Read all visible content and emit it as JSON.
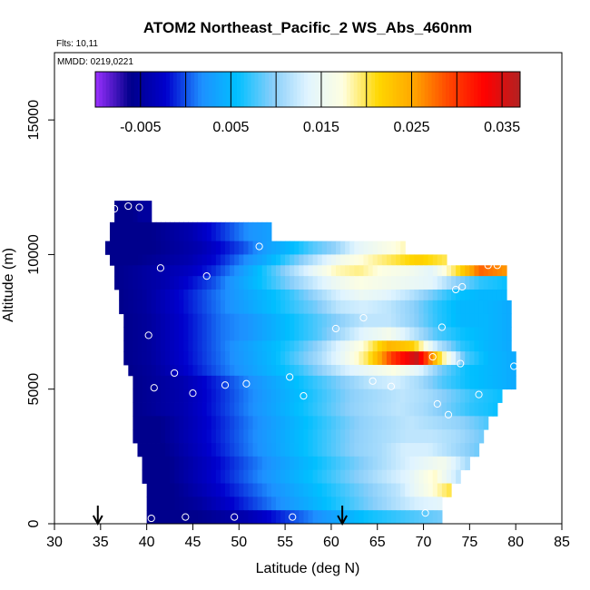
{
  "chart_data": {
    "type": "heatmap",
    "title": "ATOM2 Northeast_Pacific_2 WS_Abs_460nm",
    "flights_label": "Flts: 10,11",
    "date_label": "MMDD: 0219,0221",
    "xlabel": "Latitude (deg N)",
    "ylabel": "Altitude (m)",
    "xlim": [
      30,
      85
    ],
    "ylim": [
      0,
      17500
    ],
    "xticks": [
      "30",
      "35",
      "40",
      "45",
      "50",
      "55",
      "60",
      "65",
      "70",
      "75",
      "80",
      "85"
    ],
    "yticks": [
      "0",
      "5000",
      "10000",
      "15000"
    ],
    "colorbar": {
      "range": [
        -0.01,
        0.037
      ],
      "ticks": [
        "-0.005",
        "0.005",
        "0.015",
        "0.025",
        "0.035"
      ],
      "colors": [
        "#9b30ff",
        "#00008b",
        "#0000cd",
        "#1e90ff",
        "#00bfff",
        "#87cefa",
        "#e0f4ff",
        "#ffffe0",
        "#ffd700",
        "#ffa500",
        "#ff4500",
        "#ff0000",
        "#b22222"
      ]
    },
    "arrows_at_latitude": [
      34.7,
      61.2
    ],
    "bands": [
      {
        "alt_bottom": 11200,
        "alt_top": 12000,
        "lat_start": 36.5,
        "lat_end": 40.5,
        "values": [
          -0.006,
          -0.006,
          -0.006,
          -0.005,
          -0.005
        ]
      },
      {
        "alt_bottom": 10500,
        "alt_top": 11200,
        "lat_start": 36.0,
        "lat_end": 53.5,
        "values": [
          -0.006,
          -0.006,
          -0.006,
          -0.005,
          -0.004,
          -0.002,
          0.0,
          0.002,
          0.003
        ]
      },
      {
        "alt_bottom": 10000,
        "alt_top": 10500,
        "lat_start": 35.5,
        "lat_end": 68.0,
        "values": [
          -0.006,
          -0.006,
          -0.006,
          -0.005,
          -0.004,
          -0.002,
          0.0,
          0.003,
          0.005,
          0.008,
          0.01,
          0.014,
          0.016,
          0.018
        ]
      },
      {
        "alt_bottom": 9600,
        "alt_top": 10000,
        "lat_start": 36.0,
        "lat_end": 72.5,
        "values": [
          -0.006,
          -0.006,
          -0.005,
          -0.004,
          -0.002,
          0.001,
          0.004,
          0.008,
          0.012,
          0.016,
          0.018,
          0.02,
          0.022,
          0.02
        ]
      },
      {
        "alt_bottom": 9200,
        "alt_top": 9600,
        "lat_start": 36.5,
        "lat_end": 79.0,
        "values": [
          -0.006,
          -0.005,
          -0.004,
          -0.003,
          -0.001,
          0.002,
          0.006,
          0.01,
          0.014,
          0.018,
          0.019,
          0.017,
          0.016,
          0.014,
          0.02,
          0.028,
          0.026
        ]
      },
      {
        "alt_bottom": 8700,
        "alt_top": 9200,
        "lat_start": 36.5,
        "lat_end": 79.0,
        "values": [
          -0.006,
          -0.005,
          -0.004,
          -0.002,
          0.0,
          0.003,
          0.006,
          0.009,
          0.012,
          0.015,
          0.017,
          0.016,
          0.015,
          0.014,
          0.01,
          0.007,
          0.006
        ]
      },
      {
        "alt_bottom": 8300,
        "alt_top": 8700,
        "lat_start": 37.0,
        "lat_end": 79.0,
        "values": [
          -0.006,
          -0.005,
          -0.003,
          -0.001,
          0.001,
          0.003,
          0.005,
          0.007,
          0.01,
          0.013,
          0.015,
          0.014,
          0.012,
          0.009,
          0.006,
          0.005,
          0.005
        ]
      },
      {
        "alt_bottom": 7800,
        "alt_top": 8300,
        "lat_start": 37.0,
        "lat_end": 79.5,
        "values": [
          -0.006,
          -0.005,
          -0.003,
          -0.001,
          0.001,
          0.003,
          0.005,
          0.007,
          0.009,
          0.012,
          0.013,
          0.012,
          0.01,
          0.007,
          0.005,
          0.005,
          0.004
        ]
      },
      {
        "alt_bottom": 7300,
        "alt_top": 7800,
        "lat_start": 37.5,
        "lat_end": 79.5,
        "values": [
          -0.006,
          -0.005,
          -0.003,
          -0.001,
          0.001,
          0.002,
          0.004,
          0.006,
          0.008,
          0.01,
          0.012,
          0.012,
          0.01,
          0.007,
          0.005,
          0.005,
          0.004
        ]
      },
      {
        "alt_bottom": 6800,
        "alt_top": 7300,
        "lat_start": 37.5,
        "lat_end": 79.5,
        "values": [
          -0.006,
          -0.005,
          -0.003,
          -0.001,
          0.001,
          0.002,
          0.004,
          0.006,
          0.008,
          0.011,
          0.014,
          0.016,
          0.012,
          0.008,
          0.006,
          0.005,
          0.004
        ]
      },
      {
        "alt_bottom": 6400,
        "alt_top": 6800,
        "lat_start": 37.5,
        "lat_end": 79.5,
        "values": [
          -0.006,
          -0.005,
          -0.003,
          -0.001,
          0.001,
          0.003,
          0.005,
          0.007,
          0.01,
          0.014,
          0.018,
          0.024,
          0.022,
          0.012,
          0.007,
          0.005,
          0.004
        ]
      },
      {
        "alt_bottom": 5900,
        "alt_top": 6400,
        "lat_start": 37.5,
        "lat_end": 80.0,
        "values": [
          -0.006,
          -0.005,
          -0.003,
          -0.001,
          0.001,
          0.003,
          0.005,
          0.008,
          0.011,
          0.015,
          0.02,
          0.03,
          0.036,
          0.02,
          0.008,
          0.005,
          0.004
        ]
      },
      {
        "alt_bottom": 5500,
        "alt_top": 5900,
        "lat_start": 38.0,
        "lat_end": 80.0,
        "values": [
          -0.006,
          -0.005,
          -0.003,
          -0.001,
          0.001,
          0.003,
          0.005,
          0.007,
          0.01,
          0.013,
          0.015,
          0.017,
          0.014,
          0.009,
          0.006,
          0.005,
          0.004
        ]
      },
      {
        "alt_bottom": 5000,
        "alt_top": 5500,
        "lat_start": 38.5,
        "lat_end": 80.0,
        "values": [
          -0.006,
          -0.005,
          -0.004,
          -0.002,
          0.0,
          0.002,
          0.004,
          0.006,
          0.008,
          0.01,
          0.012,
          0.013,
          0.011,
          0.008,
          0.006,
          0.005,
          0.004
        ]
      },
      {
        "alt_bottom": 4500,
        "alt_top": 5000,
        "lat_start": 38.5,
        "lat_end": 78.5,
        "values": [
          -0.006,
          -0.005,
          -0.004,
          -0.002,
          0.0,
          0.002,
          0.004,
          0.006,
          0.008,
          0.01,
          0.011,
          0.012,
          0.011,
          0.009,
          0.007,
          0.006
        ]
      },
      {
        "alt_bottom": 4000,
        "alt_top": 4500,
        "lat_start": 38.5,
        "lat_end": 78.0,
        "values": [
          -0.006,
          -0.005,
          -0.004,
          -0.002,
          0.0,
          0.002,
          0.004,
          0.006,
          0.008,
          0.01,
          0.011,
          0.012,
          0.011,
          0.009,
          0.007,
          0.006
        ]
      },
      {
        "alt_bottom": 3500,
        "alt_top": 4000,
        "lat_start": 38.5,
        "lat_end": 77.0,
        "values": [
          -0.006,
          -0.006,
          -0.004,
          -0.002,
          0.0,
          0.002,
          0.004,
          0.006,
          0.008,
          0.01,
          0.011,
          0.012,
          0.011,
          0.01,
          0.008
        ]
      },
      {
        "alt_bottom": 3000,
        "alt_top": 3500,
        "lat_start": 38.5,
        "lat_end": 76.5,
        "values": [
          -0.006,
          -0.006,
          -0.004,
          -0.002,
          0.0,
          0.002,
          0.004,
          0.006,
          0.008,
          0.01,
          0.011,
          0.012,
          0.012,
          0.011,
          0.009
        ]
      },
      {
        "alt_bottom": 2500,
        "alt_top": 3000,
        "lat_start": 39.0,
        "lat_end": 76.0,
        "values": [
          -0.006,
          -0.006,
          -0.004,
          -0.002,
          0.0,
          0.002,
          0.004,
          0.006,
          0.008,
          0.01,
          0.011,
          0.013,
          0.013,
          0.011,
          0.009
        ]
      },
      {
        "alt_bottom": 2000,
        "alt_top": 2500,
        "lat_start": 39.5,
        "lat_end": 75.0,
        "values": [
          -0.006,
          -0.006,
          -0.004,
          -0.002,
          0.0,
          0.002,
          0.004,
          0.006,
          0.008,
          0.01,
          0.012,
          0.014,
          0.016,
          0.011
        ]
      },
      {
        "alt_bottom": 1500,
        "alt_top": 2000,
        "lat_start": 39.5,
        "lat_end": 74.0,
        "values": [
          -0.006,
          -0.006,
          -0.004,
          -0.002,
          0.0,
          0.002,
          0.004,
          0.006,
          0.008,
          0.01,
          0.012,
          0.014,
          0.018,
          0.012
        ]
      },
      {
        "alt_bottom": 1000,
        "alt_top": 1500,
        "lat_start": 40.0,
        "lat_end": 73.0,
        "values": [
          -0.006,
          -0.006,
          -0.004,
          -0.002,
          0.0,
          0.002,
          0.004,
          0.006,
          0.008,
          0.01,
          0.012,
          0.016,
          0.02
        ]
      },
      {
        "alt_bottom": 500,
        "alt_top": 1000,
        "lat_start": 40.0,
        "lat_end": 72.0,
        "values": [
          -0.006,
          -0.006,
          -0.005,
          -0.003,
          -0.001,
          0.001,
          0.003,
          0.005,
          0.007,
          0.009,
          0.011,
          0.013,
          0.014
        ]
      },
      {
        "alt_bottom": 0,
        "alt_top": 500,
        "lat_start": 40.0,
        "lat_end": 72.0,
        "values": [
          -0.006,
          -0.006,
          -0.006,
          -0.005,
          -0.004,
          -0.002,
          0.0,
          0.002,
          0.004,
          0.006,
          0.007,
          0.008,
          0.009
        ]
      }
    ],
    "points": [
      [
        35.5,
        10900
      ],
      [
        36.5,
        11700
      ],
      [
        38.0,
        11800
      ],
      [
        39.2,
        11750
      ],
      [
        41.5,
        9500
      ],
      [
        46.5,
        9200
      ],
      [
        52.2,
        10300
      ],
      [
        77.0,
        9600
      ],
      [
        78.0,
        9600
      ],
      [
        73.5,
        8700
      ],
      [
        74.2,
        8800
      ],
      [
        63.5,
        7650
      ],
      [
        60.5,
        7250
      ],
      [
        72.0,
        7300
      ],
      [
        40.2,
        7000
      ],
      [
        71.0,
        6200
      ],
      [
        74.0,
        5950
      ],
      [
        79.8,
        5850
      ],
      [
        43.0,
        5600
      ],
      [
        55.5,
        5450
      ],
      [
        64.5,
        5300
      ],
      [
        66.5,
        5100
      ],
      [
        40.8,
        5050
      ],
      [
        45.0,
        4850
      ],
      [
        48.5,
        5150
      ],
      [
        50.8,
        5200
      ],
      [
        57.0,
        4750
      ],
      [
        76.0,
        4800
      ],
      [
        71.5,
        4450
      ],
      [
        72.7,
        4050
      ],
      [
        70.2,
        400
      ],
      [
        55.8,
        250
      ],
      [
        49.5,
        250
      ],
      [
        44.2,
        250
      ],
      [
        40.5,
        200
      ]
    ]
  }
}
